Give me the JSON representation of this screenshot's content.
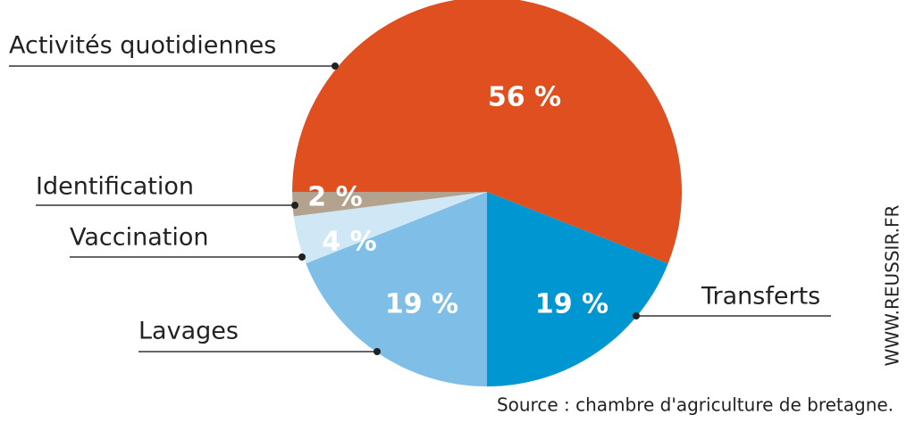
{
  "chart_data": {
    "type": "pie",
    "categories": [
      "Activités quotidiennes",
      "Transferts",
      "Lavages",
      "Vaccination",
      "Identification"
    ],
    "values": [
      56,
      19,
      19,
      4,
      2
    ],
    "value_labels": [
      "56 %",
      "19 %",
      "19 %",
      "4 %",
      "2 %"
    ],
    "colors": [
      "#e04f1f",
      "#0096d1",
      "#7fbee6",
      "#d0e7f5",
      "#b3a28d"
    ],
    "source": "Source : chambre d'agriculture de bretagne.",
    "watermark": "WWW.REUSSIR.FR"
  }
}
